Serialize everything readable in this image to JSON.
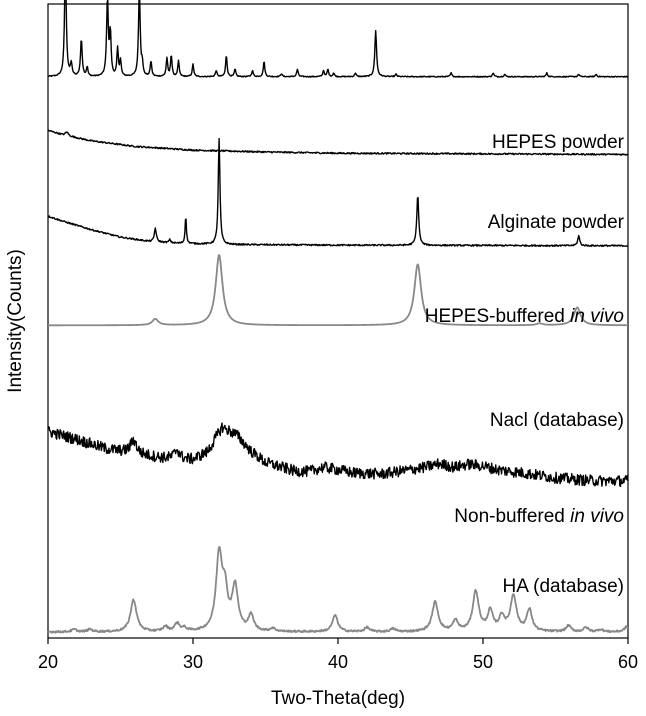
{
  "chart_data": {
    "type": "line",
    "xlabel": "Two-Theta(deg)",
    "ylabel": "Intensity(Counts)",
    "xlim": [
      20,
      60
    ],
    "x_ticks": [
      "20",
      "30",
      "40",
      "50",
      "60"
    ],
    "y_ticks_shown": false,
    "legend": "inline labels at right of each trace",
    "series": [
      {
        "name": "HEPES powder",
        "label_parts": [
          {
            "text": "HEPES powder",
            "italic": false
          }
        ],
        "color": "#000000",
        "baseline": 0.9,
        "noise": 0.0008,
        "background": [],
        "peaks": [
          [
            21.2,
            0.185,
            0.07
          ],
          [
            21.6,
            0.02,
            0.07
          ],
          [
            22.3,
            0.06,
            0.07
          ],
          [
            22.7,
            0.015,
            0.06
          ],
          [
            24.1,
            0.125,
            0.07
          ],
          [
            24.3,
            0.07,
            0.06
          ],
          [
            24.8,
            0.045,
            0.06
          ],
          [
            25.0,
            0.025,
            0.06
          ],
          [
            26.3,
            0.14,
            0.07
          ],
          [
            26.5,
            0.02,
            0.05
          ],
          [
            27.1,
            0.025,
            0.06
          ],
          [
            28.2,
            0.03,
            0.06
          ],
          [
            28.5,
            0.035,
            0.06
          ],
          [
            29.0,
            0.025,
            0.06
          ],
          [
            30.0,
            0.02,
            0.06
          ],
          [
            31.6,
            0.01,
            0.06
          ],
          [
            32.3,
            0.035,
            0.06
          ],
          [
            32.9,
            0.012,
            0.06
          ],
          [
            34.1,
            0.01,
            0.06
          ],
          [
            34.9,
            0.025,
            0.06
          ],
          [
            36.1,
            0.005,
            0.06
          ],
          [
            37.2,
            0.012,
            0.06
          ],
          [
            39.0,
            0.01,
            0.06
          ],
          [
            39.3,
            0.012,
            0.06
          ],
          [
            39.7,
            0.006,
            0.06
          ],
          [
            41.2,
            0.006,
            0.06
          ],
          [
            42.6,
            0.075,
            0.07
          ],
          [
            44.0,
            0.004,
            0.06
          ],
          [
            47.8,
            0.006,
            0.06
          ],
          [
            50.7,
            0.006,
            0.06
          ],
          [
            51.5,
            0.004,
            0.06
          ],
          [
            54.4,
            0.006,
            0.06
          ],
          [
            56.6,
            0.004,
            0.06
          ],
          [
            57.8,
            0.004,
            0.06
          ]
        ]
      },
      {
        "name": "Alginate powder",
        "label_parts": [
          {
            "text": "Alginate powder",
            "italic": false
          }
        ],
        "color": "#000000",
        "baseline": 0.774,
        "noise": 0.0012,
        "background": [
          [
            20,
            0.039
          ],
          [
            21,
            0.032
          ],
          [
            23,
            0.022
          ],
          [
            26,
            0.013
          ],
          [
            30,
            0.007
          ],
          [
            35,
            0.004
          ],
          [
            40,
            0.002
          ],
          [
            50,
            0.001
          ],
          [
            60,
            0
          ]
        ],
        "peaks": [
          [
            21.3,
            0.006,
            0.12
          ]
        ]
      },
      {
        "name": "HEPES-buffered in vivo",
        "label_parts": [
          {
            "text": "HEPES-buffered ",
            "italic": false
          },
          {
            "text": "in vivo",
            "italic": true
          }
        ],
        "color": "#000000",
        "baseline": 0.626,
        "noise": 0.0012,
        "background": [
          [
            20,
            0.048
          ],
          [
            21,
            0.04
          ],
          [
            23,
            0.026
          ],
          [
            25,
            0.014
          ],
          [
            27,
            0.007
          ],
          [
            29,
            0.004
          ],
          [
            32,
            0.002
          ],
          [
            40,
            0.001
          ],
          [
            60,
            0
          ]
        ],
        "peaks": [
          [
            27.4,
            0.022,
            0.08
          ],
          [
            28.4,
            0.005,
            0.07
          ],
          [
            29.5,
            0.046,
            0.05
          ],
          [
            31.8,
            0.171,
            0.07
          ],
          [
            45.5,
            0.081,
            0.08
          ],
          [
            56.6,
            0.016,
            0.08
          ]
        ]
      },
      {
        "name": "Nacl (database)",
        "label_parts": [
          {
            "text": "Nacl (database)",
            "italic": false
          }
        ],
        "color": "#888888",
        "baseline": 0.497,
        "noise": 0,
        "background": [],
        "peaks": [
          [
            27.4,
            0.01,
            0.25
          ],
          [
            31.8,
            0.114,
            0.28
          ],
          [
            45.5,
            0.099,
            0.28
          ],
          [
            53.9,
            0.003,
            0.25
          ],
          [
            56.5,
            0.029,
            0.28
          ]
        ]
      },
      {
        "name": "Non-buffered in vivo",
        "label_parts": [
          {
            "text": "Non-buffered ",
            "italic": false
          },
          {
            "text": "in vivo",
            "italic": true
          }
        ],
        "color": "#000000",
        "baseline": 0.245,
        "noise": 0.009,
        "background": [
          [
            20,
            0.08
          ],
          [
            22,
            0.067
          ],
          [
            24,
            0.052
          ],
          [
            26,
            0.044
          ],
          [
            28,
            0.037
          ],
          [
            30,
            0.035
          ],
          [
            31,
            0.047
          ],
          [
            32,
            0.087
          ],
          [
            33,
            0.075
          ],
          [
            34,
            0.048
          ],
          [
            35,
            0.03
          ],
          [
            37,
            0.016
          ],
          [
            38,
            0.015
          ],
          [
            39,
            0.022
          ],
          [
            40,
            0.018
          ],
          [
            41,
            0.013
          ],
          [
            43,
            0.011
          ],
          [
            45,
            0.018
          ],
          [
            46,
            0.022
          ],
          [
            47,
            0.028
          ],
          [
            48,
            0.022
          ],
          [
            49,
            0.027
          ],
          [
            50,
            0.024
          ],
          [
            51,
            0.018
          ],
          [
            53,
            0.012
          ],
          [
            55,
            0.005
          ],
          [
            57,
            0.001
          ],
          [
            58,
            0
          ],
          [
            60,
            0
          ]
        ],
        "peaks": [
          [
            25.9,
            0.022,
            0.25
          ],
          [
            28.9,
            0.015,
            0.2
          ]
        ]
      },
      {
        "name": "HA (database)",
        "label_parts": [
          {
            "text": "HA (database)",
            "italic": false
          }
        ],
        "color": "#888888",
        "baseline": 0.0,
        "noise": 0.0015,
        "background": [],
        "peaks": [
          [
            21.8,
            0.004,
            0.2
          ],
          [
            22.9,
            0.004,
            0.2
          ],
          [
            25.9,
            0.052,
            0.25
          ],
          [
            28.1,
            0.008,
            0.2
          ],
          [
            28.9,
            0.013,
            0.2
          ],
          [
            29.4,
            0.005,
            0.2
          ],
          [
            31.8,
            0.122,
            0.25
          ],
          [
            32.2,
            0.056,
            0.22
          ],
          [
            32.9,
            0.071,
            0.25
          ],
          [
            34.0,
            0.025,
            0.22
          ],
          [
            35.5,
            0.005,
            0.2
          ],
          [
            39.8,
            0.027,
            0.22
          ],
          [
            42.0,
            0.007,
            0.2
          ],
          [
            43.8,
            0.005,
            0.2
          ],
          [
            46.7,
            0.048,
            0.25
          ],
          [
            48.1,
            0.017,
            0.22
          ],
          [
            49.5,
            0.065,
            0.25
          ],
          [
            50.5,
            0.032,
            0.22
          ],
          [
            51.3,
            0.023,
            0.22
          ],
          [
            52.1,
            0.058,
            0.25
          ],
          [
            53.2,
            0.035,
            0.22
          ],
          [
            55.9,
            0.01,
            0.2
          ],
          [
            57.1,
            0.007,
            0.2
          ],
          [
            58.1,
            0.004,
            0.2
          ],
          [
            59.9,
            0.008,
            0.2
          ]
        ]
      }
    ]
  }
}
